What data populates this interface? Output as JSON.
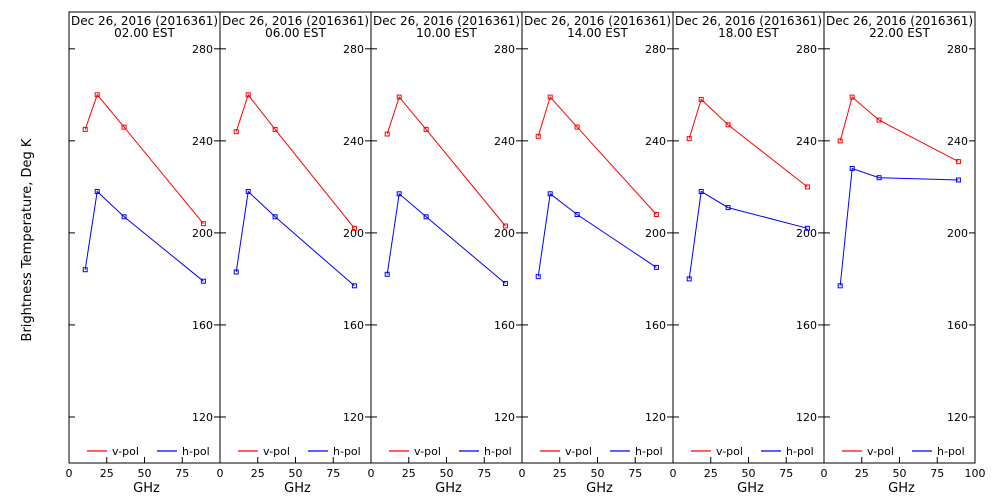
{
  "colors": {
    "v_pol": "#ff0000",
    "h_pol": "#0000ff",
    "axis": "#000000",
    "background": "#ffffff"
  },
  "chart_data": {
    "type": "line",
    "ylabel": "Brightness Temperature, Deg K",
    "xlabel": "GHz",
    "ylim": [
      100,
      296
    ],
    "y_ticks": [
      120,
      160,
      200,
      240,
      280
    ],
    "x_ticks": [
      0,
      25,
      50,
      75,
      100
    ],
    "grid": false,
    "legend_position": "bottom",
    "series_names": [
      "v-pol",
      "h-pol"
    ],
    "panels": [
      {
        "title": "Dec 26, 2016 (2016361)",
        "subtitle": "02.00 EST",
        "x": [
          10.7,
          18.7,
          36.5,
          89
        ],
        "series": [
          {
            "name": "v-pol",
            "values": [
              245,
              260,
              246,
              204
            ]
          },
          {
            "name": "h-pol",
            "values": [
              184,
              218,
              207,
              179
            ]
          }
        ]
      },
      {
        "title": "Dec 26, 2016 (2016361)",
        "subtitle": "06.00 EST",
        "x": [
          10.7,
          18.7,
          36.5,
          89
        ],
        "series": [
          {
            "name": "v-pol",
            "values": [
              244,
              260,
              245,
              202
            ]
          },
          {
            "name": "h-pol",
            "values": [
              183,
              218,
              207,
              177
            ]
          }
        ]
      },
      {
        "title": "Dec 26, 2016 (2016361)",
        "subtitle": "10.00 EST",
        "x": [
          10.7,
          18.7,
          36.5,
          89
        ],
        "series": [
          {
            "name": "v-pol",
            "values": [
              243,
              259,
              245,
              203
            ]
          },
          {
            "name": "h-pol",
            "values": [
              182,
              217,
              207,
              178
            ]
          }
        ]
      },
      {
        "title": "Dec 26, 2016 (2016361)",
        "subtitle": "14.00 EST",
        "x": [
          10.7,
          18.7,
          36.5,
          89
        ],
        "series": [
          {
            "name": "v-pol",
            "values": [
              242,
              259,
              246,
              208
            ]
          },
          {
            "name": "h-pol",
            "values": [
              181,
              217,
              208,
              185
            ]
          }
        ]
      },
      {
        "title": "Dec 26, 2016 (2016361)",
        "subtitle": "18.00 EST",
        "x": [
          10.7,
          18.7,
          36.5,
          89
        ],
        "series": [
          {
            "name": "v-pol",
            "values": [
              241,
              258,
              247,
              220
            ]
          },
          {
            "name": "h-pol",
            "values": [
              180,
              218,
              211,
              202
            ]
          }
        ]
      },
      {
        "title": "Dec 26, 2016 (2016361)",
        "subtitle": "22.00 EST",
        "x": [
          10.7,
          18.7,
          36.5,
          89
        ],
        "series": [
          {
            "name": "v-pol",
            "values": [
              240,
              259,
              249,
              231
            ]
          },
          {
            "name": "h-pol",
            "values": [
              177,
              228,
              224,
              223
            ]
          }
        ]
      }
    ]
  }
}
